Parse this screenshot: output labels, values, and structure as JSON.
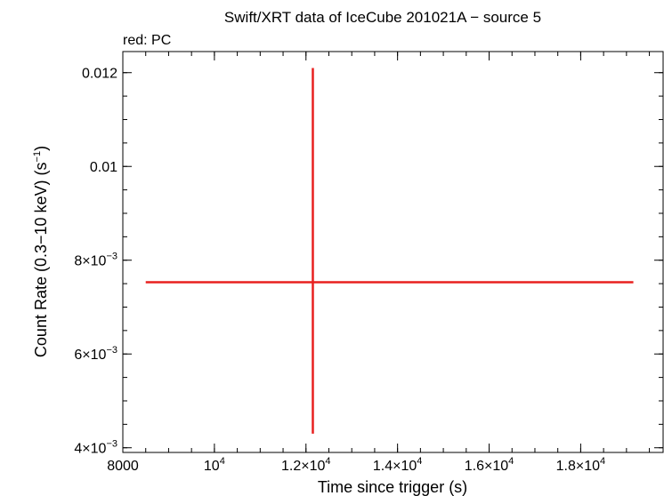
{
  "chart_data": {
    "type": "scatter",
    "title": "Swift/XRT data of IceCube 201021A − source 5",
    "subtitle": "red: PC",
    "xlabel": "Time since trigger (s)",
    "ylabel": "Count Rate (0.3−10 keV) (s",
    "ylabel_sup": "−1",
    "ylabel_end": ")",
    "xlim": [
      8000,
      19800
    ],
    "ylim": [
      0.0039,
      0.01245
    ],
    "x_ticks": [
      {
        "value": 8000,
        "mant": "8000",
        "exp": ""
      },
      {
        "value": 10000,
        "mant": "10",
        "exp": "4"
      },
      {
        "value": 12000,
        "mant": "1.2×10",
        "exp": "4"
      },
      {
        "value": 14000,
        "mant": "1.4×10",
        "exp": "4"
      },
      {
        "value": 16000,
        "mant": "1.6×10",
        "exp": "4"
      },
      {
        "value": 18000,
        "mant": "1.8×10",
        "exp": "4"
      }
    ],
    "y_ticks": [
      {
        "value": 0.004,
        "mant": "4×10",
        "exp": "−3"
      },
      {
        "value": 0.006,
        "mant": "6×10",
        "exp": "−3"
      },
      {
        "value": 0.008,
        "mant": "8×10",
        "exp": "−3"
      },
      {
        "value": 0.01,
        "mant": "0.01",
        "exp": ""
      },
      {
        "value": 0.012,
        "mant": "0.012",
        "exp": ""
      }
    ],
    "x_minor_step": 500,
    "y_minor_step": 0.0005,
    "grid": false,
    "series": [
      {
        "color": "#e8201f",
        "points": [
          {
            "x": 12150,
            "y": 0.00753,
            "x_err_low": 3650,
            "x_err_high": 7000,
            "y_err_low": 0.00323,
            "y_err_high": 0.00457
          }
        ]
      }
    ]
  }
}
